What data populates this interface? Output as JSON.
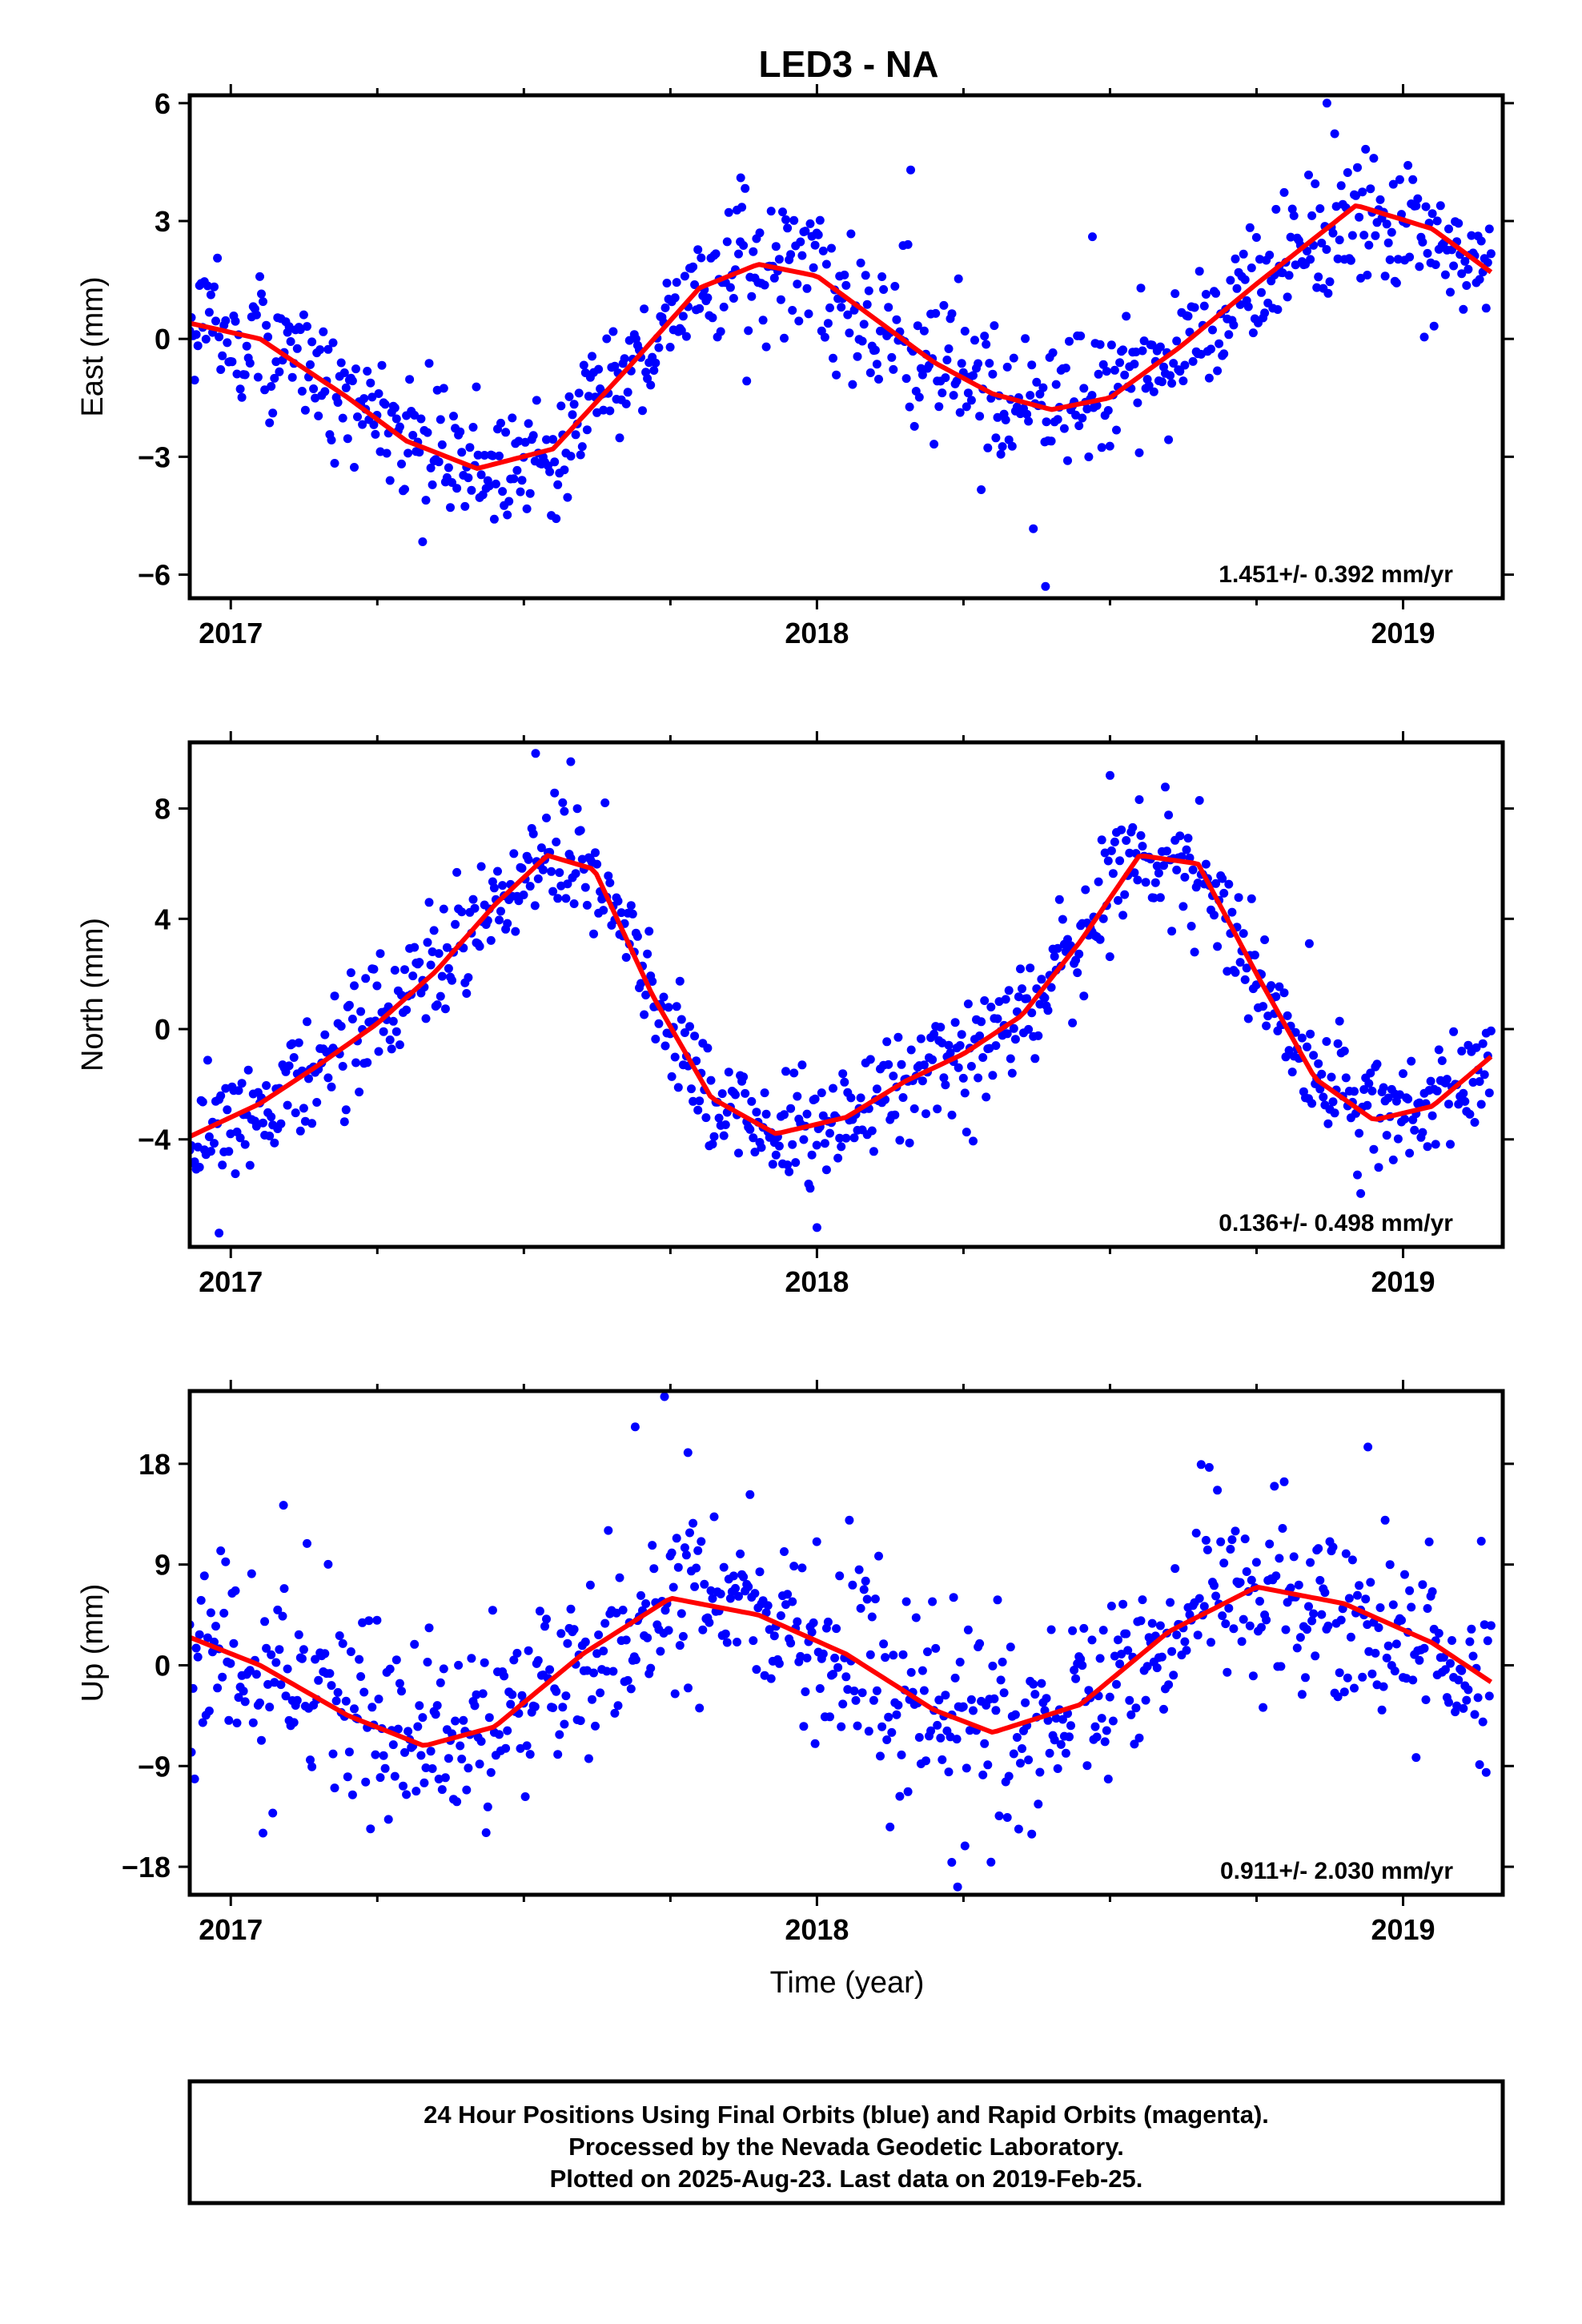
{
  "title": "LED3 - NA",
  "xlabel": "Time (year)",
  "colors": {
    "final_orbits": "#0000ff",
    "rapid_orbits": "#ff00ff",
    "model_fit": "#ff0000",
    "frame": "#000000"
  },
  "footer": {
    "lines": [
      "24 Hour Positions Using Final Orbits (blue) and Rapid Orbits (magenta).",
      "Processed by the Nevada Geodetic Laboratory.",
      "Plotted on 2025-Aug-23. Last data on 2019-Feb-25."
    ]
  },
  "chart_data": [
    {
      "type": "scatter",
      "ylabel": "East (mm)",
      "xlim": [
        2016.93,
        2019.17
      ],
      "ylim": [
        -6.6,
        6.2
      ],
      "x_ticks": [
        {
          "value": 2017,
          "label": "2017"
        },
        {
          "value": 2018,
          "label": "2018"
        },
        {
          "value": 2019,
          "label": "2019"
        }
      ],
      "y_ticks": [
        {
          "value": 6,
          "label": "6"
        },
        {
          "value": 3,
          "label": "3"
        },
        {
          "value": 0,
          "label": "0"
        },
        {
          "value": -3,
          "label": "−3"
        },
        {
          "value": -6,
          "label": "−6"
        }
      ],
      "rate_text": "1.451+/- 0.392 mm/yr",
      "data_start": 2016.93,
      "data_end": 2019.15,
      "fit_x": [
        2016.93,
        2017.05,
        2017.2,
        2017.3,
        2017.42,
        2017.55,
        2017.68,
        2017.8,
        2017.9,
        2018.0,
        2018.1,
        2018.2,
        2018.3,
        2018.4,
        2018.5,
        2018.62,
        2018.75,
        2018.92,
        2019.05,
        2019.15
      ],
      "fit_y": [
        0.4,
        0.0,
        -1.5,
        -2.6,
        -3.3,
        -2.8,
        -0.7,
        1.3,
        1.9,
        1.6,
        0.5,
        -0.6,
        -1.4,
        -1.8,
        -1.5,
        -0.2,
        1.4,
        3.4,
        2.8,
        1.7
      ],
      "noise": 0.85,
      "point_count": 800,
      "outliers": [
        [
          2018.39,
          -6.3
        ],
        [
          2018.16,
          4.3
        ],
        [
          2017.87,
          4.1
        ],
        [
          2018.87,
          6.0
        ],
        [
          2018.47,
          2.6
        ]
      ]
    },
    {
      "type": "scatter",
      "ylabel": "North (mm)",
      "xlim": [
        2016.93,
        2019.17
      ],
      "ylim": [
        -7.9,
        10.4
      ],
      "x_ticks": [
        {
          "value": 2017,
          "label": "2017"
        },
        {
          "value": 2018,
          "label": "2018"
        },
        {
          "value": 2019,
          "label": "2019"
        }
      ],
      "y_ticks": [
        {
          "value": 8,
          "label": "8"
        },
        {
          "value": 4,
          "label": "4"
        },
        {
          "value": 0,
          "label": "0"
        },
        {
          "value": -4,
          "label": "−4"
        }
      ],
      "rate_text": "0.136+/- 0.498 mm/yr",
      "data_start": 2016.93,
      "data_end": 2019.15,
      "fit_x": [
        2016.93,
        2017.05,
        2017.15,
        2017.25,
        2017.35,
        2017.45,
        2017.54,
        2017.62,
        2017.72,
        2017.82,
        2017.93,
        2018.05,
        2018.15,
        2018.25,
        2018.35,
        2018.45,
        2018.55,
        2018.65,
        2018.75,
        2018.85,
        2018.95,
        2019.05,
        2019.15
      ],
      "fit_y": [
        -3.9,
        -2.7,
        -1.3,
        0.2,
        2.1,
        4.5,
        6.3,
        5.8,
        1.2,
        -2.5,
        -3.8,
        -3.2,
        -1.9,
        -0.9,
        0.5,
        3.2,
        6.3,
        6.0,
        2.0,
        -1.8,
        -3.3,
        -2.8,
        -1.0
      ],
      "noise": 1.05,
      "point_count": 800,
      "outliers": [
        [
          2017.52,
          10.0
        ],
        [
          2017.58,
          9.7
        ],
        [
          2018.5,
          9.2
        ],
        [
          2016.98,
          -7.4
        ],
        [
          2018.0,
          -7.2
        ],
        [
          2018.84,
          3.1
        ]
      ]
    },
    {
      "type": "scatter",
      "ylabel": "Up (mm)",
      "xlim": [
        2016.93,
        2019.17
      ],
      "ylim": [
        -20.5,
        24.5
      ],
      "x_ticks": [
        {
          "value": 2017,
          "label": "2017"
        },
        {
          "value": 2018,
          "label": "2018"
        },
        {
          "value": 2019,
          "label": "2019"
        }
      ],
      "y_ticks": [
        {
          "value": 18,
          "label": "18"
        },
        {
          "value": 9,
          "label": "9"
        },
        {
          "value": 0,
          "label": "0"
        },
        {
          "value": -9,
          "label": "−9"
        },
        {
          "value": -18,
          "label": "−18"
        }
      ],
      "rate_text": "0.911+/- 2.030 mm/yr",
      "data_start": 2016.93,
      "data_end": 2019.15,
      "fit_x": [
        2016.93,
        2017.05,
        2017.2,
        2017.33,
        2017.45,
        2017.6,
        2017.75,
        2017.9,
        2018.05,
        2018.2,
        2018.3,
        2018.45,
        2018.6,
        2018.75,
        2018.9,
        2019.05,
        2019.15
      ],
      "fit_y": [
        2.5,
        0.0,
        -4.5,
        -7.2,
        -5.5,
        1.0,
        6.0,
        4.5,
        1.0,
        -4.0,
        -6.0,
        -3.5,
        3.0,
        7.0,
        5.5,
        2.0,
        -1.5
      ],
      "noise": 4.3,
      "point_count": 800,
      "outliers": [
        [
          2017.69,
          21.3
        ],
        [
          2017.74,
          24.0
        ],
        [
          2017.78,
          19.0
        ],
        [
          2018.24,
          -19.8
        ],
        [
          2018.23,
          -17.6
        ],
        [
          2018.94,
          19.5
        ],
        [
          2017.09,
          14.3
        ]
      ]
    }
  ]
}
